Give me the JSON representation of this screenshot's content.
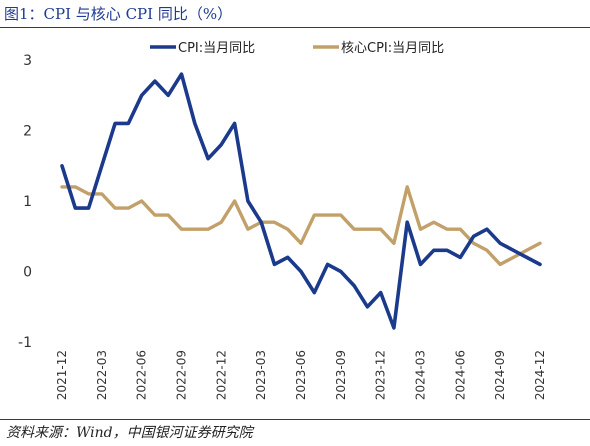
{
  "title": "图1：CPI 与核心 CPI 同比（%）",
  "source": "资料来源：Wind，中国银河证券研究院",
  "colors": {
    "cpi": "#1b3a8c",
    "core": "#c2a06a",
    "rule": "#1f3a93"
  },
  "chart_data": {
    "type": "line",
    "title": "",
    "xlabel": "",
    "ylabel": "",
    "ylim": [
      -1,
      3
    ],
    "yticks": [
      3,
      2,
      1,
      0,
      -1
    ],
    "grid": false,
    "legend": "top",
    "x": [
      "2021-12",
      "2022-01",
      "2022-02",
      "2022-03",
      "2022-04",
      "2022-05",
      "2022-06",
      "2022-07",
      "2022-08",
      "2022-09",
      "2022-10",
      "2022-11",
      "2022-12",
      "2023-01",
      "2023-02",
      "2023-03",
      "2023-04",
      "2023-05",
      "2023-06",
      "2023-07",
      "2023-08",
      "2023-09",
      "2023-10",
      "2023-11",
      "2023-12",
      "2024-01",
      "2024-02",
      "2024-03",
      "2024-04",
      "2024-05",
      "2024-06",
      "2024-07",
      "2024-08",
      "2024-09",
      "2024-10",
      "2024-11",
      "2024-12"
    ],
    "xtick_labels": [
      "2021-12",
      "2022-03",
      "2022-06",
      "2022-09",
      "2022-12",
      "2023-03",
      "2023-06",
      "2023-09",
      "2023-12",
      "2024-03",
      "2024-06",
      "2024-09",
      "2024-12"
    ],
    "series": [
      {
        "name": "CPI:当月同比",
        "color": "#1b3a8c",
        "values": [
          1.5,
          0.9,
          0.9,
          1.5,
          2.1,
          2.1,
          2.5,
          2.7,
          2.5,
          2.8,
          2.1,
          1.6,
          1.8,
          2.1,
          1.0,
          0.7,
          0.1,
          0.2,
          0.0,
          -0.3,
          0.1,
          0.0,
          -0.2,
          -0.5,
          -0.3,
          -0.8,
          0.7,
          0.1,
          0.3,
          0.3,
          0.2,
          0.5,
          0.6,
          0.4,
          0.3,
          0.2,
          0.1
        ]
      },
      {
        "name": "核心CPI:当月同比",
        "color": "#c2a06a",
        "values": [
          1.2,
          1.2,
          1.1,
          1.1,
          0.9,
          0.9,
          1.0,
          0.8,
          0.8,
          0.6,
          0.6,
          0.6,
          0.7,
          1.0,
          0.6,
          0.7,
          0.7,
          0.6,
          0.4,
          0.8,
          0.8,
          0.8,
          0.6,
          0.6,
          0.6,
          0.4,
          1.2,
          0.6,
          0.7,
          0.6,
          0.6,
          0.4,
          0.3,
          0.1,
          0.2,
          0.3,
          0.4
        ]
      }
    ]
  }
}
